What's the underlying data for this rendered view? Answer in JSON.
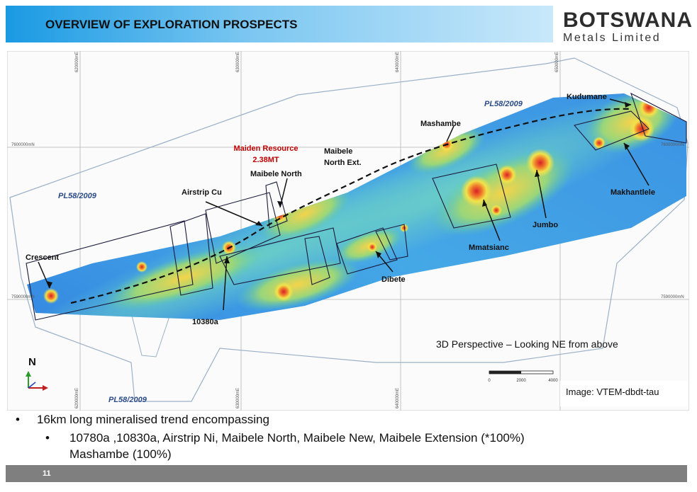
{
  "slide": {
    "title": "OVERVIEW OF EXPLORATION PROSPECTS",
    "page_number": "11"
  },
  "logo": {
    "main": "BOTSWANA",
    "sub": "Metals Limited"
  },
  "map": {
    "grid_labels_top": [
      "620000mE",
      "630000mE",
      "640000mE",
      "650000mE"
    ],
    "grid_labels_bottom": [
      "620000mE",
      "630000mE",
      "640000mE"
    ],
    "grid_labels_left": [
      "7600000mN",
      "7590000mN"
    ],
    "grid_labels_right": [
      "7600000mN",
      "7590000mN"
    ],
    "licence_labels": [
      "PL58/2009",
      "PL58/2009",
      "PL58/2009"
    ],
    "prospects": {
      "kudumane": "Kudumane",
      "mashambe": "Mashambe",
      "maibele_north_ext_1": "Maibele",
      "maibele_north_ext_2": "North Ext.",
      "maiden_resource_1": "Maiden Resource",
      "maiden_resource_2": "2.38MT",
      "maibele_north": "Maibele North",
      "airstrip_cu": "Airstrip Cu",
      "crescent": "Crescent",
      "makhantlele": "Makhantlele",
      "jumbo": "Jumbo",
      "mmatsianc": "Mmatsianc",
      "dibete": "Dibete",
      "10380a": "10380a"
    },
    "perspective_note": "3D Perspective – Looking NE from above",
    "scale_labels": [
      "0",
      "2000",
      "4000"
    ],
    "north_label": "N",
    "image_caption": "Image: VTEM-dbdt-tau",
    "colors": {
      "highlight": "#c00000",
      "licence_label": "#2a4b86",
      "anomaly_low": "#2b72d8",
      "anomaly_mid": "#56c7b0",
      "anomaly_high": "#f2e24a",
      "anomaly_peak": "#e0302a"
    }
  },
  "bullets": {
    "level1": "16km long mineralised trend encompassing",
    "level2_line1": "10780a ,10830a,  Airstrip Ni, Maibele North,  Maibele New, Maibele Extension  (*100%)",
    "level2_line2": "Mashambe (100%)"
  }
}
